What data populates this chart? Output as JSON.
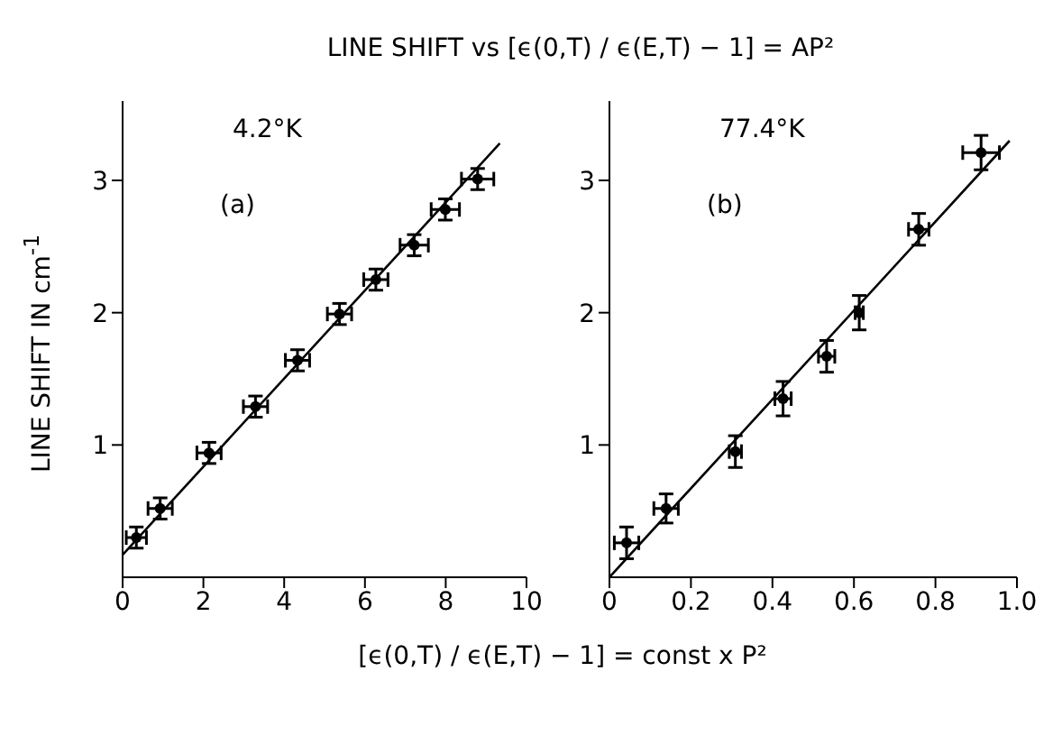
{
  "chart_data": [
    {
      "type": "scatter",
      "title": "LINE SHIFT vs [ϵ(0,T) / ϵ(E,T) − 1] = AP²",
      "xlabel": "[ϵ(0,T) / ϵ(E,T) − 1] = const x P²",
      "ylabel": "LINE SHIFT IN cm$^{-1}$",
      "annotations": [
        "4.2°K",
        "(a)"
      ],
      "xlim": [
        0,
        10
      ],
      "xticks": [
        0,
        2,
        4,
        6,
        8,
        10
      ],
      "ylim": [
        0,
        3.6
      ],
      "yticks": [
        1,
        2,
        3
      ],
      "grid": false,
      "legend": false,
      "marker": "circle",
      "series": [
        {
          "color": "#000000",
          "x": [
            0.34,
            0.93,
            2.14,
            3.29,
            4.33,
            5.37,
            6.27,
            7.22,
            7.99,
            8.79
          ],
          "values": [
            0.3,
            0.52,
            0.94,
            1.29,
            1.64,
            1.99,
            2.25,
            2.51,
            2.78,
            3.01
          ],
          "errors": [
            0.08,
            0.08,
            0.08,
            0.08,
            0.08,
            0.08,
            0.08,
            0.08,
            0.08,
            0.08
          ],
          "xerrors": [
            0.25,
            0.3,
            0.3,
            0.3,
            0.3,
            0.3,
            0.3,
            0.35,
            0.35,
            0.4
          ]
        },
        {
          "type": "line",
          "color": "#000000",
          "marker": "none",
          "x": [
            0,
            9.34
          ],
          "values": [
            0.17,
            3.28
          ]
        }
      ]
    },
    {
      "type": "scatter",
      "annotations": [
        "77.4°K",
        "(b)"
      ],
      "xlim": [
        0,
        1
      ],
      "xticks": [
        0,
        0.2,
        0.4,
        0.6,
        0.8,
        {
          "value": 1,
          "label": "1.0"
        }
      ],
      "ylim": [
        0,
        3.6
      ],
      "yticks": [
        1,
        2,
        3
      ],
      "grid": false,
      "legend": false,
      "marker": "circle",
      "series": [
        {
          "color": "#000000",
          "x": [
            0.042,
            0.139,
            0.309,
            0.426,
            0.533,
            0.613,
            0.759,
            0.912
          ],
          "values": [
            0.26,
            0.52,
            0.95,
            1.35,
            1.67,
            2.0,
            2.63,
            3.21
          ],
          "errors": [
            0.12,
            0.11,
            0.12,
            0.13,
            0.12,
            0.13,
            0.12,
            0.13
          ],
          "xerrors": [
            0.03,
            0.03,
            0.015,
            0.02,
            0.02,
            0.01,
            0.025,
            0.045
          ]
        },
        {
          "type": "line",
          "color": "#000000",
          "marker": "none",
          "x": [
            0,
            0.982
          ],
          "values": [
            0,
            3.3
          ]
        }
      ]
    }
  ]
}
